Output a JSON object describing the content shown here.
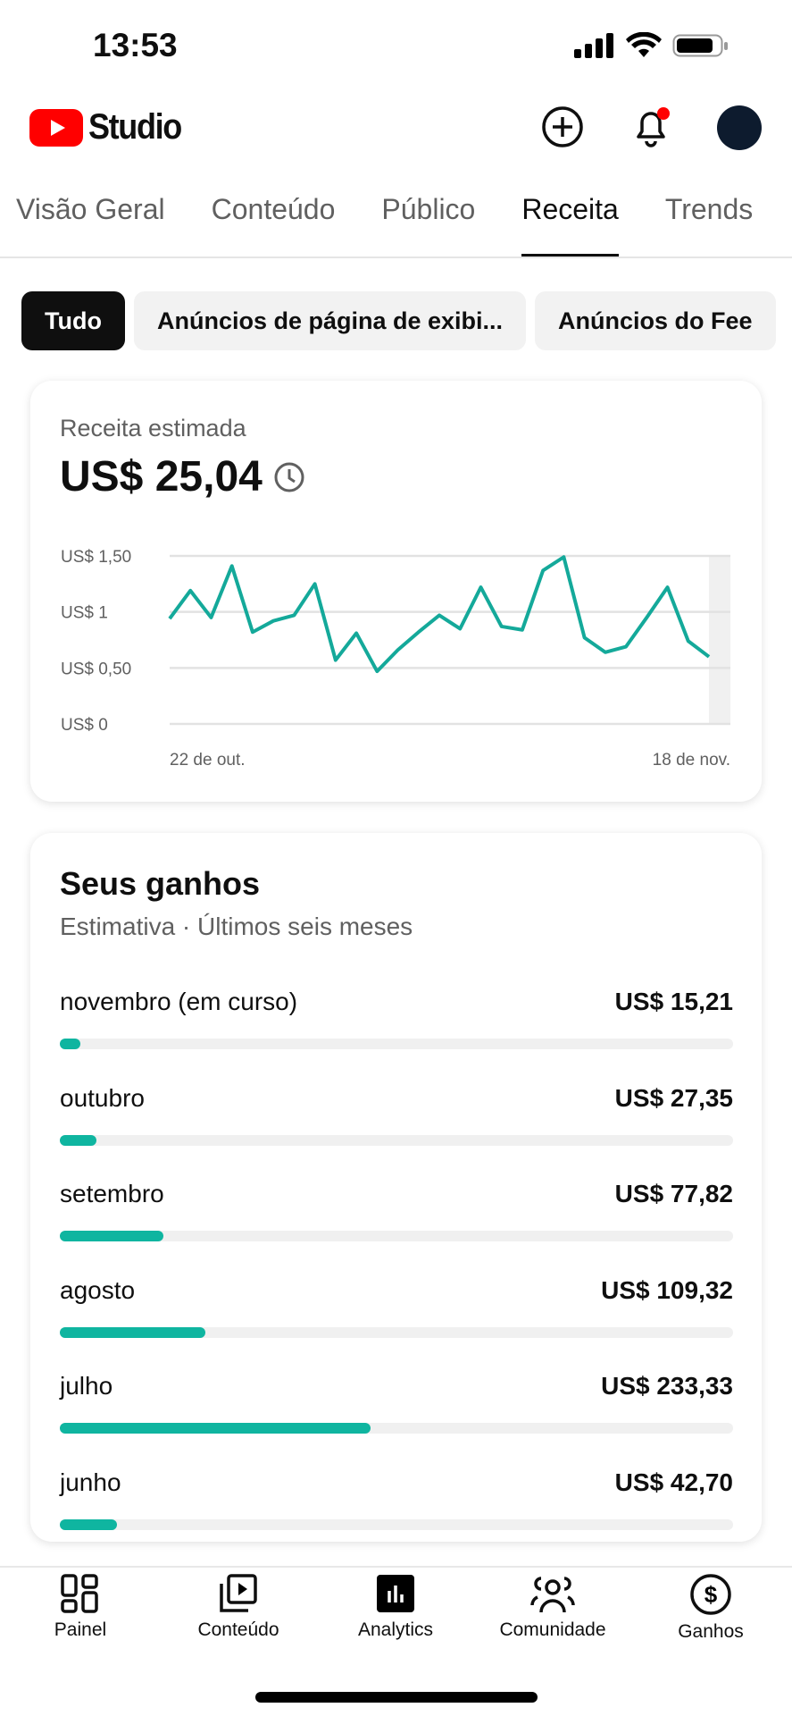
{
  "status": {
    "time": "13:53"
  },
  "header": {
    "logo": "Studio",
    "icons": [
      "create-icon",
      "notifications-icon",
      "avatar"
    ]
  },
  "tabs": [
    {
      "label": "Visão Geral"
    },
    {
      "label": "Conteúdo"
    },
    {
      "label": "Público"
    },
    {
      "label": "Receita",
      "active": true
    },
    {
      "label": "Trends"
    }
  ],
  "chips": [
    {
      "label": "Tudo",
      "active": true
    },
    {
      "label": "Anúncios de página de exibi..."
    },
    {
      "label": "Anúncios do Fee"
    }
  ],
  "revenue_card": {
    "label": "Receita estimada",
    "amount": "US$ 25,04"
  },
  "chart_data": {
    "type": "line",
    "y_ticks": [
      "US$ 0",
      "US$ 0,50",
      "US$ 1",
      "US$ 1,50"
    ],
    "ylim": [
      0,
      1.5
    ],
    "x_labels": [
      "22 de out.",
      "18 de nov."
    ],
    "values": [
      0.94,
      1.19,
      0.95,
      1.41,
      0.82,
      0.92,
      0.97,
      1.25,
      0.57,
      0.81,
      0.47,
      0.66,
      0.82,
      0.97,
      0.85,
      1.22,
      0.87,
      0.84,
      1.37,
      1.49,
      0.77,
      0.64,
      0.69,
      0.95,
      1.22,
      0.74,
      0.6
    ],
    "color": "#14a99a",
    "grid": true
  },
  "earnings": {
    "title": "Seus ganhos",
    "subtitle": "Estimativa · Últimos seis meses",
    "rows": [
      {
        "month": "novembro (em curso)",
        "value": "US$ 15,21",
        "level": 0.03
      },
      {
        "month": "outubro",
        "value": "US$ 27,35",
        "level": 0.055
      },
      {
        "month": "setembro",
        "value": "US$ 77,82",
        "level": 0.154
      },
      {
        "month": "agosto",
        "value": "US$ 109,32",
        "level": 0.216
      },
      {
        "month": "julho",
        "value": "US$ 233,33",
        "level": 0.462
      },
      {
        "month": "junho",
        "value": "US$ 42,70",
        "level": 0.085
      }
    ],
    "bar_color": "#0fb5a0"
  },
  "nav": [
    {
      "label": "Painel"
    },
    {
      "label": "Conteúdo"
    },
    {
      "label": "Analytics",
      "active": true
    },
    {
      "label": "Comunidade"
    },
    {
      "label": "Ganhos"
    }
  ]
}
